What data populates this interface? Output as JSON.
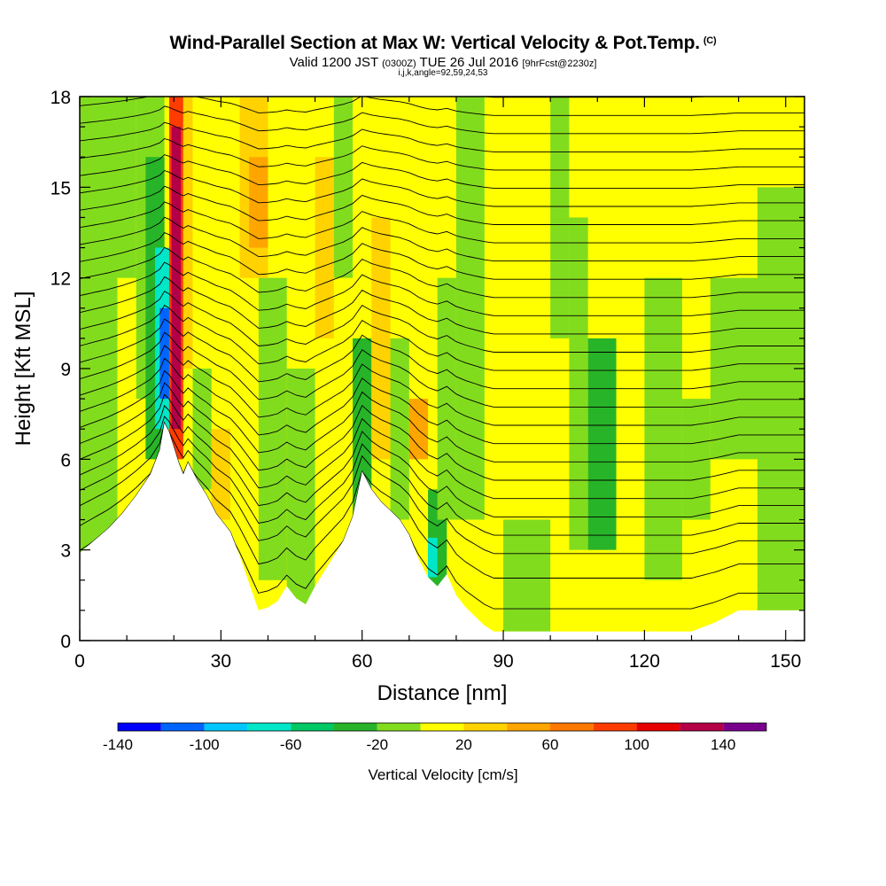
{
  "chart_data": {
    "type": "heatmap",
    "title": "Wind-Parallel Section at Max W: Vertical Velocity & Pot.Temp.",
    "title_mark": "(C)",
    "subtitle": {
      "valid": "Valid 1200 JST",
      "utc": "(0300Z)",
      "date": "TUE 26 Jul 2016",
      "forecast": "[9hrFcst@2230z]"
    },
    "ijk_line": "i,j,k,angle=92,59,24,53",
    "xlabel": "Distance [nm]",
    "ylabel": "Height [Kft MSL]",
    "xlim": [
      0,
      154
    ],
    "ylim": [
      0,
      18
    ],
    "x_ticks": [
      0,
      30,
      60,
      90,
      120,
      150
    ],
    "y_ticks": [
      0,
      3,
      6,
      9,
      12,
      15,
      18
    ],
    "colorbar": {
      "label": "Vertical Velocity [cm/s]",
      "range": [
        -140,
        160
      ],
      "step": 20,
      "labels": [
        "-140",
        "-100",
        "-60",
        "-20",
        "20",
        "60",
        "100",
        "140"
      ],
      "colors": [
        "#0000ff",
        "#0064ff",
        "#00c8ff",
        "#00e6c8",
        "#00c864",
        "#28b428",
        "#82dc1e",
        "#ffff00",
        "#ffd200",
        "#ffa500",
        "#ff7800",
        "#ff3c00",
        "#e60000",
        "#b40046",
        "#78008c"
      ]
    },
    "terrain_profile": {
      "x": [
        0,
        3,
        6,
        9,
        12,
        15,
        17,
        18,
        19,
        20,
        21,
        22,
        23,
        25,
        27,
        29,
        32,
        34,
        36,
        38,
        40,
        42,
        44,
        46,
        48,
        50,
        52,
        54,
        56,
        58,
        60,
        62,
        64,
        66,
        68,
        70,
        72,
        74,
        76,
        78,
        80,
        82,
        84,
        86,
        88,
        90,
        95,
        100,
        105,
        110,
        115,
        120,
        125,
        130,
        135,
        140,
        145,
        150,
        154
      ],
      "y": [
        2.9,
        3.3,
        3.7,
        4.2,
        4.8,
        5.5,
        6.3,
        7.2,
        6.9,
        6.4,
        5.9,
        5.5,
        5.9,
        5.3,
        4.8,
        4.2,
        3.6,
        2.8,
        1.9,
        1.0,
        1.1,
        1.3,
        1.8,
        1.4,
        1.2,
        1.8,
        2.3,
        2.8,
        3.3,
        4.1,
        5.6,
        5.0,
        4.6,
        4.3,
        4.0,
        3.5,
        2.7,
        2.1,
        1.8,
        2.2,
        1.5,
        1.1,
        0.8,
        0.5,
        0.3,
        0.3,
        0.3,
        0.3,
        0.3,
        0.3,
        0.3,
        0.3,
        0.3,
        0.3,
        0.6,
        1.0,
        1.0,
        1.0,
        1.0
      ]
    },
    "vertical_velocity_cells": [
      {
        "x": [
          0,
          154
        ],
        "y": [
          0,
          18
        ],
        "value": 10
      },
      {
        "x": [
          0,
          8
        ],
        "y": [
          0,
          18
        ],
        "value": -10
      },
      {
        "x": [
          8,
          12
        ],
        "y": [
          12,
          18
        ],
        "value": -10
      },
      {
        "x": [
          12,
          18
        ],
        "y": [
          8,
          18
        ],
        "value": -10
      },
      {
        "x": [
          14,
          18
        ],
        "y": [
          6,
          16
        ],
        "value": -30
      },
      {
        "x": [
          16,
          19
        ],
        "y": [
          7,
          13
        ],
        "value": -70
      },
      {
        "x": [
          17,
          19
        ],
        "y": [
          8,
          11
        ],
        "value": -110
      },
      {
        "x": [
          19,
          22
        ],
        "y": [
          6,
          18
        ],
        "value": 90
      },
      {
        "x": [
          19.5,
          21.5
        ],
        "y": [
          7,
          17
        ],
        "value": 130
      },
      {
        "x": [
          22,
          24
        ],
        "y": [
          9,
          18
        ],
        "value": 30
      },
      {
        "x": [
          24,
          28
        ],
        "y": [
          5,
          9
        ],
        "value": -10
      },
      {
        "x": [
          28,
          32
        ],
        "y": [
          4,
          7
        ],
        "value": 30
      },
      {
        "x": [
          34,
          40
        ],
        "y": [
          12,
          18
        ],
        "value": 30
      },
      {
        "x": [
          36,
          40
        ],
        "y": [
          13,
          16
        ],
        "value": 50
      },
      {
        "x": [
          38,
          44
        ],
        "y": [
          2,
          12
        ],
        "value": -10
      },
      {
        "x": [
          44,
          50
        ],
        "y": [
          1,
          9
        ],
        "value": -10
      },
      {
        "x": [
          50,
          54
        ],
        "y": [
          10,
          16
        ],
        "value": 30
      },
      {
        "x": [
          54,
          58
        ],
        "y": [
          12,
          18
        ],
        "value": -10
      },
      {
        "x": [
          58,
          62
        ],
        "y": [
          4,
          10
        ],
        "value": -30
      },
      {
        "x": [
          62,
          66
        ],
        "y": [
          6,
          14
        ],
        "value": 30
      },
      {
        "x": [
          66,
          70
        ],
        "y": [
          4,
          10
        ],
        "value": -10
      },
      {
        "x": [
          70,
          74
        ],
        "y": [
          6,
          8
        ],
        "value": 50
      },
      {
        "x": [
          74,
          78
        ],
        "y": [
          1.8,
          5
        ],
        "value": -30
      },
      {
        "x": [
          74,
          76
        ],
        "y": [
          2.1,
          3.4
        ],
        "value": -70
      },
      {
        "x": [
          76,
          80
        ],
        "y": [
          4,
          12
        ],
        "value": -10
      },
      {
        "x": [
          80,
          86
        ],
        "y": [
          4,
          18
        ],
        "value": -10
      },
      {
        "x": [
          90,
          100
        ],
        "y": [
          0.3,
          4
        ],
        "value": -10
      },
      {
        "x": [
          100,
          104
        ],
        "y": [
          10,
          18
        ],
        "value": -10
      },
      {
        "x": [
          104,
          108
        ],
        "y": [
          3,
          14
        ],
        "value": -10
      },
      {
        "x": [
          108,
          114
        ],
        "y": [
          3,
          10
        ],
        "value": -30
      },
      {
        "x": [
          120,
          128
        ],
        "y": [
          2,
          12
        ],
        "value": -10
      },
      {
        "x": [
          128,
          134
        ],
        "y": [
          4,
          8
        ],
        "value": -10
      },
      {
        "x": [
          134,
          154
        ],
        "y": [
          6,
          12
        ],
        "value": -10
      },
      {
        "x": [
          144,
          154
        ],
        "y": [
          1,
          15
        ],
        "value": -10
      }
    ],
    "isentrope_heights_kft": [
      1.2,
      2.2,
      3.0,
      3.6,
      4.2,
      4.8,
      5.4,
      6.0,
      6.6,
      7.2,
      7.8,
      8.4,
      9.0,
      9.6,
      10.2,
      10.8,
      11.4,
      12.0,
      12.6,
      13.2,
      13.8,
      14.4,
      15.0,
      15.6,
      16.2,
      16.8,
      17.4,
      18.0
    ]
  }
}
